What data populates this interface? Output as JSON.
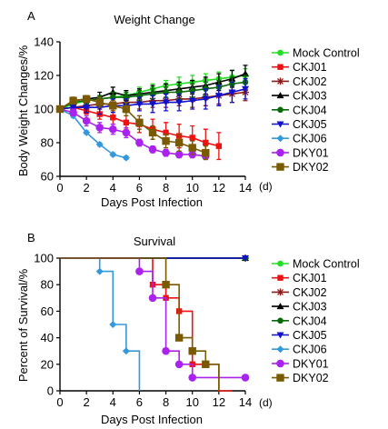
{
  "figure_labels": [
    "A",
    "B"
  ],
  "day_unit": "(d)",
  "colors": {
    "Mock Control": "#22dd22",
    "CKJ01": "#ee1111",
    "CKJ02": "#8b1a1a",
    "CKJ03": "#000000",
    "CKJ04": "#0a6a0a",
    "CKJ05": "#1111cc",
    "CKJ06": "#3399dd",
    "DKY01": "#aa22ee",
    "DKY02": "#7a5a00"
  },
  "markers": {
    "Mock Control": "circle",
    "CKJ01": "square",
    "CKJ02": "star",
    "CKJ03": "triangle-up",
    "CKJ04": "circle",
    "CKJ05": "triangle-down",
    "CKJ06": "diamond",
    "DKY01": "circle-large",
    "DKY02": "square-large"
  },
  "chart_data": [
    {
      "type": "line",
      "title": "Weight Change",
      "xlabel": "Days Post Infection",
      "ylabel": "Body Weight Changes/%",
      "xlim": [
        0,
        14
      ],
      "ylim": [
        60,
        140
      ],
      "xticks": [
        0,
        2,
        4,
        6,
        8,
        10,
        12,
        14
      ],
      "yticks": [
        60,
        80,
        100,
        120,
        140
      ],
      "error_bars": true,
      "legend_position": "right",
      "series": [
        {
          "name": "Mock Control",
          "x": [
            0,
            1,
            2,
            3,
            4,
            5,
            6,
            7,
            8,
            9,
            10,
            11,
            12,
            13,
            14
          ],
          "y": [
            100,
            103,
            105,
            106,
            107,
            108,
            110,
            112,
            114,
            115,
            116,
            117,
            118,
            119,
            120
          ],
          "err": [
            1,
            2,
            2,
            2,
            3,
            3,
            3,
            3,
            3,
            4,
            4,
            4,
            4,
            4,
            4
          ]
        },
        {
          "name": "CKJ01",
          "x": [
            0,
            1,
            2,
            3,
            4,
            5,
            6,
            7,
            8,
            9,
            10,
            11,
            12
          ],
          "y": [
            100,
            101,
            99,
            97,
            95,
            92,
            91,
            88,
            86,
            84,
            83,
            80,
            78
          ],
          "err": [
            1,
            2,
            2,
            3,
            4,
            4,
            5,
            6,
            6,
            7,
            7,
            8,
            8
          ]
        },
        {
          "name": "CKJ02",
          "x": [
            0,
            1,
            2,
            3,
            4,
            5,
            6,
            7,
            8,
            9,
            10,
            11,
            12,
            13,
            14
          ],
          "y": [
            100,
            101,
            102,
            103,
            103,
            104,
            104,
            105,
            105,
            106,
            106,
            107,
            108,
            109,
            110
          ],
          "err": [
            1,
            2,
            2,
            3,
            3,
            3,
            4,
            4,
            4,
            4,
            5,
            5,
            5,
            5,
            5
          ]
        },
        {
          "name": "CKJ03",
          "x": [
            0,
            1,
            2,
            3,
            4,
            5,
            6,
            7,
            8,
            9,
            10,
            11,
            12,
            13,
            14
          ],
          "y": [
            100,
            105,
            106,
            107,
            110,
            108,
            109,
            110,
            111,
            112,
            113,
            114,
            116,
            118,
            121
          ],
          "err": [
            1,
            2,
            2,
            3,
            3,
            3,
            3,
            4,
            4,
            4,
            4,
            5,
            5,
            5,
            5
          ]
        },
        {
          "name": "CKJ04",
          "x": [
            0,
            1,
            2,
            3,
            4,
            5,
            6,
            7,
            8,
            9,
            10,
            11,
            12,
            13,
            14
          ],
          "y": [
            100,
            104,
            105,
            106,
            107,
            107,
            108,
            109,
            110,
            110,
            111,
            112,
            113,
            115,
            116
          ],
          "err": [
            1,
            2,
            2,
            2,
            3,
            3,
            3,
            3,
            3,
            4,
            4,
            4,
            4,
            4,
            4
          ]
        },
        {
          "name": "CKJ05",
          "x": [
            0,
            1,
            2,
            3,
            4,
            5,
            6,
            7,
            8,
            9,
            10,
            11,
            12,
            13,
            14
          ],
          "y": [
            100,
            101,
            101,
            101,
            102,
            102,
            103,
            103,
            104,
            104,
            105,
            106,
            108,
            110,
            112
          ],
          "err": [
            1,
            3,
            3,
            4,
            4,
            4,
            4,
            5,
            5,
            5,
            5,
            6,
            6,
            6,
            6
          ]
        },
        {
          "name": "CKJ06",
          "x": [
            0,
            1,
            2,
            3,
            4,
            5
          ],
          "y": [
            100,
            96,
            86,
            79,
            73,
            71
          ],
          "err": [
            1,
            1,
            1,
            1,
            1,
            1
          ]
        },
        {
          "name": "DKY01",
          "x": [
            0,
            1,
            2,
            3,
            4,
            5,
            6,
            7,
            8,
            9,
            10,
            11
          ],
          "y": [
            100,
            98,
            93,
            89,
            88,
            86,
            80,
            76,
            74,
            73,
            73,
            72
          ],
          "err": [
            1,
            2,
            3,
            3,
            3,
            3,
            2,
            2,
            2,
            2,
            2,
            2
          ]
        },
        {
          "name": "DKY02",
          "x": [
            0,
            1,
            2,
            3,
            4,
            5,
            6,
            7,
            8,
            9,
            10,
            11
          ],
          "y": [
            100,
            105,
            106,
            104,
            102,
            100,
            92,
            86,
            81,
            80,
            77,
            74
          ],
          "err": [
            1,
            2,
            2,
            3,
            3,
            4,
            4,
            4,
            4,
            5,
            4,
            4
          ]
        }
      ]
    },
    {
      "type": "line",
      "step": true,
      "title": "Survival",
      "xlabel": "Days Post Infection",
      "ylabel": "Percent of Survival/%",
      "xlim": [
        0,
        14
      ],
      "ylim": [
        0,
        100
      ],
      "xticks": [
        0,
        2,
        4,
        6,
        8,
        10,
        12,
        14
      ],
      "yticks": [
        0,
        20,
        40,
        60,
        80,
        100
      ],
      "legend_position": "right",
      "series": [
        {
          "name": "Mock Control",
          "x": [
            0,
            14
          ],
          "y": [
            100,
            100
          ]
        },
        {
          "name": "CKJ01",
          "x": [
            0,
            7,
            8,
            9,
            10,
            12,
            13
          ],
          "y": [
            100,
            80,
            70,
            60,
            20,
            0,
            0
          ]
        },
        {
          "name": "CKJ02",
          "x": [
            0,
            14
          ],
          "y": [
            100,
            100
          ]
        },
        {
          "name": "CKJ03",
          "x": [
            0,
            14
          ],
          "y": [
            100,
            100
          ]
        },
        {
          "name": "CKJ04",
          "x": [
            0,
            14
          ],
          "y": [
            100,
            100
          ]
        },
        {
          "name": "CKJ05",
          "x": [
            0,
            14
          ],
          "y": [
            100,
            100
          ]
        },
        {
          "name": "CKJ06",
          "x": [
            0,
            3,
            4,
            5,
            6
          ],
          "y": [
            100,
            90,
            50,
            30,
            0
          ]
        },
        {
          "name": "DKY01",
          "x": [
            0,
            6,
            7,
            8,
            9,
            10,
            14
          ],
          "y": [
            100,
            90,
            70,
            30,
            20,
            10,
            10
          ]
        },
        {
          "name": "DKY02",
          "x": [
            0,
            8,
            9,
            10,
            11,
            12
          ],
          "y": [
            100,
            80,
            40,
            30,
            20,
            0
          ]
        }
      ]
    }
  ]
}
